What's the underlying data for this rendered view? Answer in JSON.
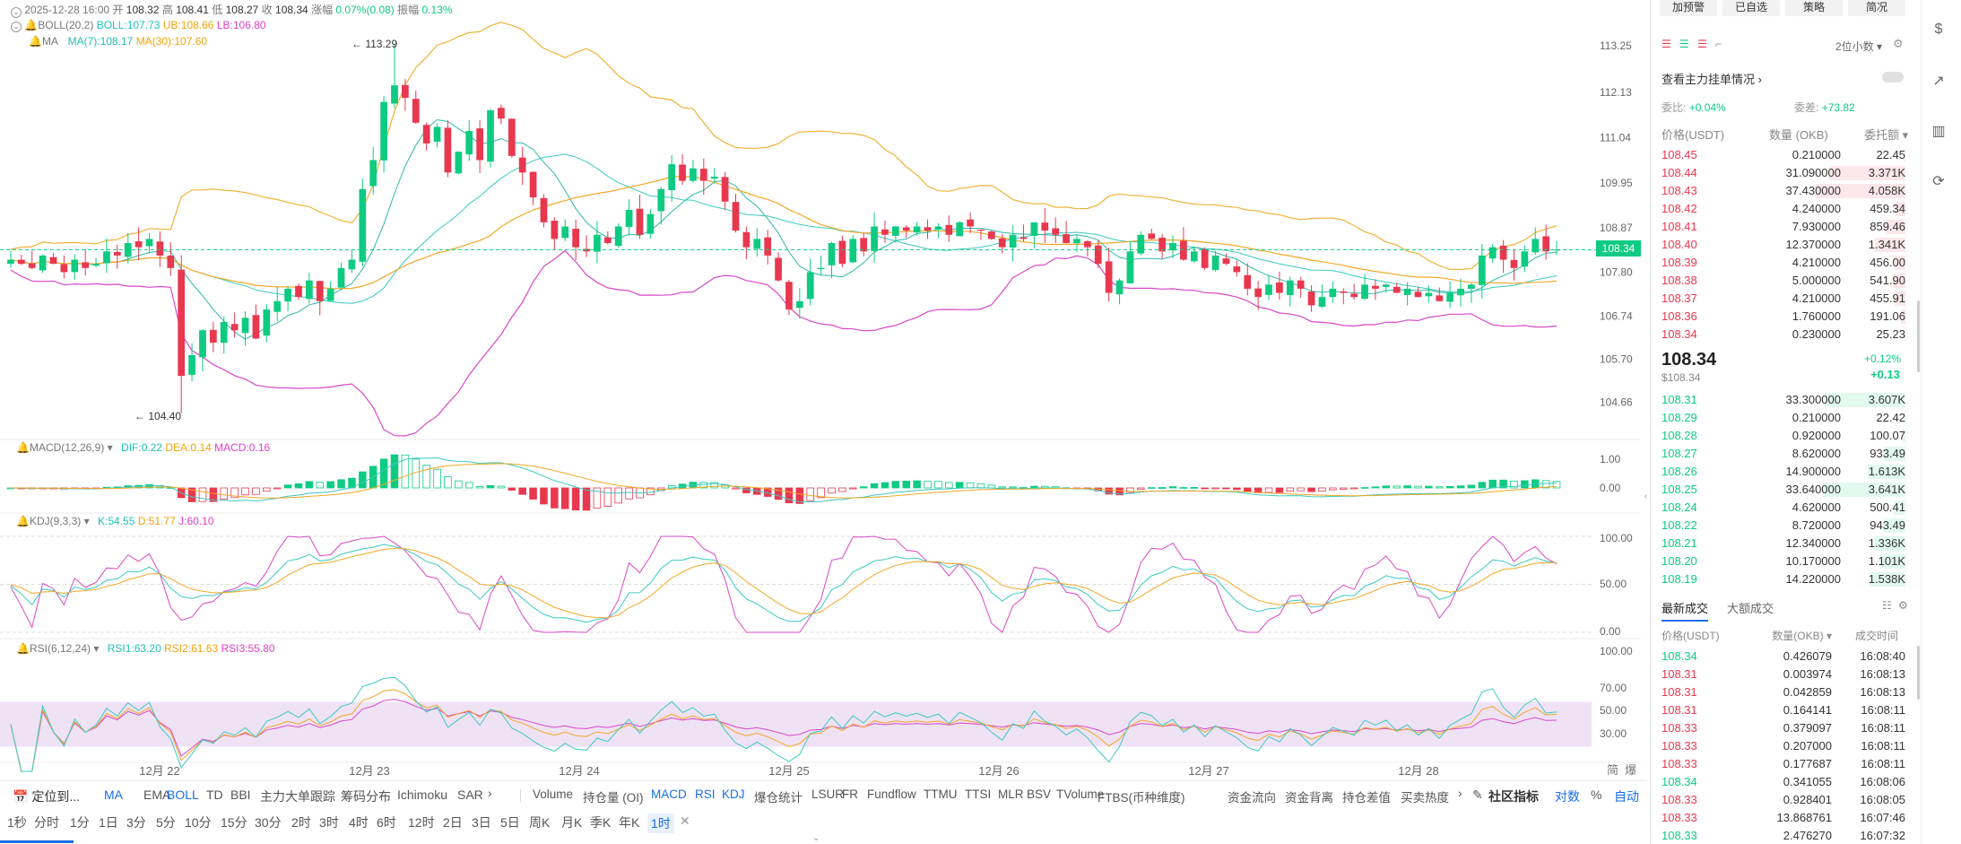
{
  "header": {
    "date": "2025-12-28 16:00",
    "open_label": "开",
    "open": "108.32",
    "high_label": "高",
    "high": "108.41",
    "low_label": "低",
    "low": "108.27",
    "close_label": "收",
    "close": "108.34",
    "change_label": "涨幅",
    "change": "0.07%(0.08)",
    "amp_label": "振幅",
    "amp": "0.13%",
    "boll_name": "BOLL(20,2)",
    "boll_mid": "BOLL:107.73",
    "boll_ub": "UB:108.66",
    "boll_lb": "LB:106.80",
    "ma_name": "MA",
    "ma7": "MA(7):108.17",
    "ma30": "MA(30):107.60"
  },
  "price_axis": [
    "113.25",
    "112.13",
    "111.04",
    "109.95",
    "108.87",
    "107.80",
    "106.74",
    "105.70",
    "104.66"
  ],
  "current_price_tag": "108.34",
  "annotations": {
    "high": "113.29",
    "low": "104.40"
  },
  "macd": {
    "name": "MACD(12,26,9)",
    "dif": "DIF:0.22",
    "dea": "DEA:0.14",
    "macd": "MACD:0.16",
    "axis": [
      "1.00",
      "0.00"
    ]
  },
  "kdj": {
    "name": "KDJ(9,3,3)",
    "k": "K:54.55",
    "d": "D:51.77",
    "j": "J:60.10",
    "axis": [
      "100.00",
      "50.00",
      "0.00"
    ]
  },
  "rsi": {
    "name": "RSI(6,12,24)",
    "r1": "RSI1:63.20",
    "r2": "RSI2:61.63",
    "r3": "RSI3:55.80",
    "axis": [
      "100.00",
      "70.00",
      "50.00",
      "30.00"
    ]
  },
  "time_axis": [
    "12月 22",
    "12月 23",
    "12月 24",
    "12月 25",
    "12月 26",
    "12月 27",
    "12月 28"
  ],
  "axis_corner": [
    "简",
    "爆"
  ],
  "indicator_toolbar": {
    "locate": "定位到...",
    "main": [
      "MA",
      "EMA",
      "BOLL",
      "TD",
      "BBI",
      "主力大单跟踪",
      "筹码分布",
      "Ichimoku",
      "SAR"
    ],
    "sub": [
      "Volume",
      "持仓量 (OI)",
      "MACD",
      "RSI",
      "KDJ",
      "爆仓统计",
      "LSUR",
      "FR",
      "Fundflow",
      "TTMU",
      "TTSI",
      "MLR",
      "BSV",
      "TVolume",
      "FTBS(币种维度)",
      "资金流向",
      "资金背离",
      "持仓差值",
      "买卖热度"
    ],
    "community": "社区指标",
    "log": "对数",
    "pct": "%",
    "auto": "自动"
  },
  "periods": [
    "1秒",
    "分时",
    "1分",
    "1日",
    "3分",
    "5分",
    "10分",
    "15分",
    "30分",
    "2时",
    "3时",
    "4时",
    "6时",
    "12时",
    "2日",
    "3日",
    "5日",
    "周K",
    "月K",
    "季K",
    "年K",
    "1时"
  ],
  "active_period": "1时",
  "right": {
    "buttons": [
      "加预警",
      "已自选",
      "策略",
      "简况"
    ],
    "decimals": "2位小数",
    "main_orders": "查看主力挂单情况",
    "weibi_label": "委比",
    "weibi": "+0.04%",
    "weicha_label": "委差",
    "weicha": "+73.82",
    "cols": {
      "price": "价格(USDT)",
      "qty": "数量 (OKB)",
      "amount": "委托额"
    },
    "asks": [
      {
        "p": "108.45",
        "q": "0.210000",
        "t": "22.45",
        "w": 0.01
      },
      {
        "p": "108.44",
        "q": "31.090000",
        "t": "3.371K",
        "w": 0.85
      },
      {
        "p": "108.43",
        "q": "37.430000",
        "t": "4.058K",
        "w": 1.0
      },
      {
        "p": "108.42",
        "q": "4.240000",
        "t": "459.34",
        "w": 0.12
      },
      {
        "p": "108.41",
        "q": "7.930000",
        "t": "859.46",
        "w": 0.22
      },
      {
        "p": "108.40",
        "q": "12.370000",
        "t": "1.341K",
        "w": 0.34
      },
      {
        "p": "108.39",
        "q": "4.210000",
        "t": "456.00",
        "w": 0.12
      },
      {
        "p": "108.38",
        "q": "5.000000",
        "t": "541.90",
        "w": 0.14
      },
      {
        "p": "108.37",
        "q": "4.210000",
        "t": "455.91",
        "w": 0.12
      },
      {
        "p": "108.36",
        "q": "1.760000",
        "t": "191.06",
        "w": 0.05
      },
      {
        "p": "108.34",
        "q": "0.230000",
        "t": "25.23",
        "w": 0.01
      }
    ],
    "last_price": "108.34",
    "last_usd": "$108.34",
    "last_pct": "+0.12%",
    "last_chg": "+0.13",
    "bids": [
      {
        "p": "108.31",
        "q": "33.300000",
        "t": "3.607K",
        "w": 0.9
      },
      {
        "p": "108.29",
        "q": "0.210000",
        "t": "22.42",
        "w": 0.01
      },
      {
        "p": "108.28",
        "q": "0.920000",
        "t": "100.07",
        "w": 0.03
      },
      {
        "p": "108.27",
        "q": "8.620000",
        "t": "933.49",
        "w": 0.24
      },
      {
        "p": "108.26",
        "q": "14.900000",
        "t": "1.613K",
        "w": 0.42
      },
      {
        "p": "108.25",
        "q": "33.640000",
        "t": "3.641K",
        "w": 0.92
      },
      {
        "p": "108.24",
        "q": "4.620000",
        "t": "500.41",
        "w": 0.13
      },
      {
        "p": "108.22",
        "q": "8.720000",
        "t": "943.49",
        "w": 0.24
      },
      {
        "p": "108.21",
        "q": "12.340000",
        "t": "1.336K",
        "w": 0.35
      },
      {
        "p": "108.20",
        "q": "10.170000",
        "t": "1.101K",
        "w": 0.29
      },
      {
        "p": "108.19",
        "q": "14.220000",
        "t": "1.538K",
        "w": 0.4
      }
    ],
    "trade_tabs": [
      "最新成交",
      "大额成交"
    ],
    "trade_cols": {
      "price": "价格(USDT)",
      "qty": "数量(OKB)",
      "time": "成交时间"
    },
    "trades": [
      {
        "p": "108.34",
        "q": "0.426079",
        "t": "16:08:40",
        "s": "buy"
      },
      {
        "p": "108.31",
        "q": "0.003974",
        "t": "16:08:13",
        "s": "sell"
      },
      {
        "p": "108.31",
        "q": "0.042859",
        "t": "16:08:13",
        "s": "sell"
      },
      {
        "p": "108.31",
        "q": "0.164141",
        "t": "16:08:11",
        "s": "sell"
      },
      {
        "p": "108.33",
        "q": "0.379097",
        "t": "16:08:11",
        "s": "sell"
      },
      {
        "p": "108.33",
        "q": "0.207000",
        "t": "16:08:11",
        "s": "sell"
      },
      {
        "p": "108.33",
        "q": "0.177687",
        "t": "16:08:11",
        "s": "sell"
      },
      {
        "p": "108.34",
        "q": "0.341055",
        "t": "16:08:06",
        "s": "buy"
      },
      {
        "p": "108.33",
        "q": "0.928401",
        "t": "16:08:05",
        "s": "sell"
      },
      {
        "p": "108.33",
        "q": "13.868761",
        "t": "16:07:46",
        "s": "sell"
      },
      {
        "p": "108.33",
        "q": "2.476270",
        "t": "16:07:32",
        "s": "buy"
      }
    ]
  },
  "colors": {
    "up": "#0ecb81",
    "down": "#e8384f",
    "boll": "#f0b33a",
    "ma7": "#3cc9c0",
    "ma30": "#f2a728",
    "lb": "#d848c8",
    "accent": "#1a6ee8"
  },
  "chart_data": {
    "type": "candlestick",
    "price_range": [
      104.2,
      113.6
    ],
    "closes": [
      108.1,
      108.0,
      107.9,
      108.2,
      108.0,
      107.8,
      108.1,
      107.9,
      108.0,
      108.3,
      108.2,
      108.5,
      108.4,
      108.6,
      108.2,
      107.9,
      105.3,
      105.8,
      106.4,
      106.1,
      106.6,
      106.4,
      106.7,
      106.2,
      106.9,
      107.1,
      107.4,
      107.2,
      107.6,
      107.1,
      107.4,
      107.9,
      108.1,
      109.8,
      110.5,
      111.9,
      112.3,
      112.0,
      111.4,
      110.9,
      111.3,
      110.2,
      110.7,
      111.2,
      110.5,
      111.7,
      111.5,
      110.6,
      110.2,
      109.6,
      109.0,
      108.6,
      108.9,
      108.4,
      108.3,
      108.7,
      108.5,
      108.9,
      109.3,
      108.7,
      109.2,
      109.8,
      110.4,
      110.0,
      110.3,
      110.0,
      110.1,
      109.5,
      108.8,
      108.4,
      108.6,
      108.2,
      107.6,
      106.9,
      107.1,
      107.8,
      107.9,
      108.5,
      108.0,
      108.6,
      108.3,
      108.9,
      108.7,
      108.9,
      108.8,
      108.9,
      108.8,
      108.9,
      108.7,
      109.0,
      108.9,
      108.8,
      108.6,
      108.4,
      108.7,
      108.6,
      109.0,
      108.8,
      108.7,
      108.5,
      108.6,
      108.4,
      108.0,
      107.3,
      107.6,
      108.3,
      108.7,
      108.6,
      108.3,
      108.5,
      108.1,
      108.3,
      107.9,
      108.2,
      108.0,
      107.8,
      107.4,
      107.2,
      107.5,
      107.3,
      107.6,
      107.4,
      107.0,
      107.2,
      107.4,
      107.3,
      107.2,
      107.5,
      107.4,
      107.5,
      107.3,
      107.4,
      107.2,
      107.3,
      107.1,
      107.3,
      107.4,
      107.5,
      108.2,
      108.4,
      108.1,
      107.9,
      108.3,
      108.6,
      108.3,
      108.34
    ],
    "highs_note": "see annotations",
    "ytick_labels": [
      "113.25",
      "112.13",
      "111.04",
      "109.95",
      "108.87",
      "107.80",
      "106.74",
      "105.70",
      "104.66"
    ],
    "xtick_labels": [
      "12月 22",
      "12月 23",
      "12月 24",
      "12月 25",
      "12月 26",
      "12月 27",
      "12月 28"
    ]
  }
}
